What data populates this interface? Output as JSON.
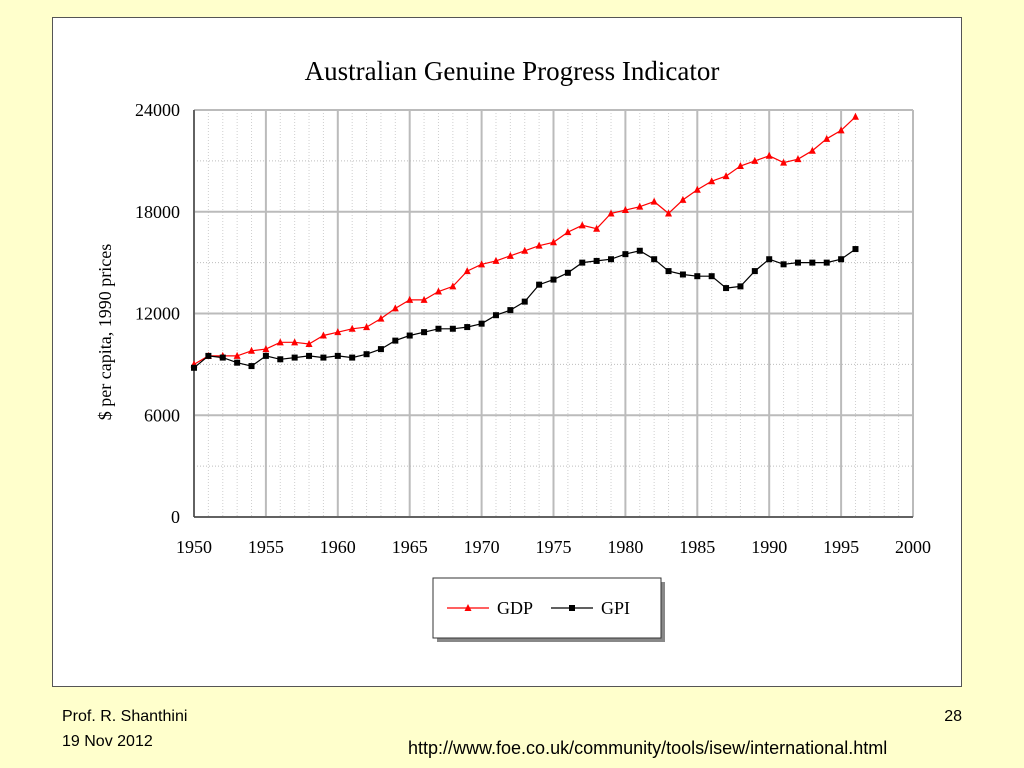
{
  "slide": {
    "author": "Prof. R. Shanthini",
    "date": "19 Nov 2012",
    "page_number": "28",
    "source_url": "http://www.foe.co.uk/community/tools/isew/international.html"
  },
  "colors": {
    "background": "#ffffcc",
    "gdp": "#ff0000",
    "gpi": "#000000",
    "grid": "#bbbbbb"
  },
  "chart_data": {
    "type": "line",
    "title": "Australian Genuine Progress Indicator",
    "xlabel": "",
    "ylabel": "$ per capita, 1990 prices",
    "xlim": [
      1950,
      2000
    ],
    "ylim": [
      0,
      24000
    ],
    "x_ticks": [
      1950,
      1955,
      1960,
      1965,
      1970,
      1975,
      1980,
      1985,
      1990,
      1995,
      2000
    ],
    "y_ticks": [
      0,
      6000,
      12000,
      18000,
      24000
    ],
    "grid": true,
    "legend_position": "bottom-center",
    "x": [
      1950,
      1951,
      1952,
      1953,
      1954,
      1955,
      1956,
      1957,
      1958,
      1959,
      1960,
      1961,
      1962,
      1963,
      1964,
      1965,
      1966,
      1967,
      1968,
      1969,
      1970,
      1971,
      1972,
      1973,
      1974,
      1975,
      1976,
      1977,
      1978,
      1979,
      1980,
      1981,
      1982,
      1983,
      1984,
      1985,
      1986,
      1987,
      1988,
      1989,
      1990,
      1991,
      1992,
      1993,
      1994,
      1995,
      1996
    ],
    "series": [
      {
        "name": "GDP",
        "color": "#ff0000",
        "marker": "triangle",
        "values": [
          9000,
          9500,
          9500,
          9500,
          9800,
          9900,
          10300,
          10300,
          10200,
          10700,
          10900,
          11100,
          11200,
          11700,
          12300,
          12800,
          12800,
          13300,
          13600,
          14500,
          14900,
          15100,
          15400,
          15700,
          16000,
          16200,
          16800,
          17200,
          17000,
          17900,
          18100,
          18300,
          18600,
          17900,
          18700,
          19300,
          19800,
          20100,
          20700,
          21000,
          21300,
          20900,
          21100,
          21600,
          22300,
          22800,
          23600
        ]
      },
      {
        "name": "GPI",
        "color": "#000000",
        "marker": "square",
        "values": [
          8800,
          9500,
          9400,
          9100,
          8900,
          9500,
          9300,
          9400,
          9500,
          9400,
          9500,
          9400,
          9600,
          9900,
          10400,
          10700,
          10900,
          11100,
          11100,
          11200,
          11400,
          11900,
          12200,
          12700,
          13700,
          14000,
          14400,
          15000,
          15100,
          15200,
          15500,
          15700,
          15200,
          14500,
          14300,
          14200,
          14200,
          13500,
          13600,
          14500,
          15200,
          14900,
          15000,
          15000,
          15000,
          15200,
          15800
        ]
      }
    ]
  }
}
